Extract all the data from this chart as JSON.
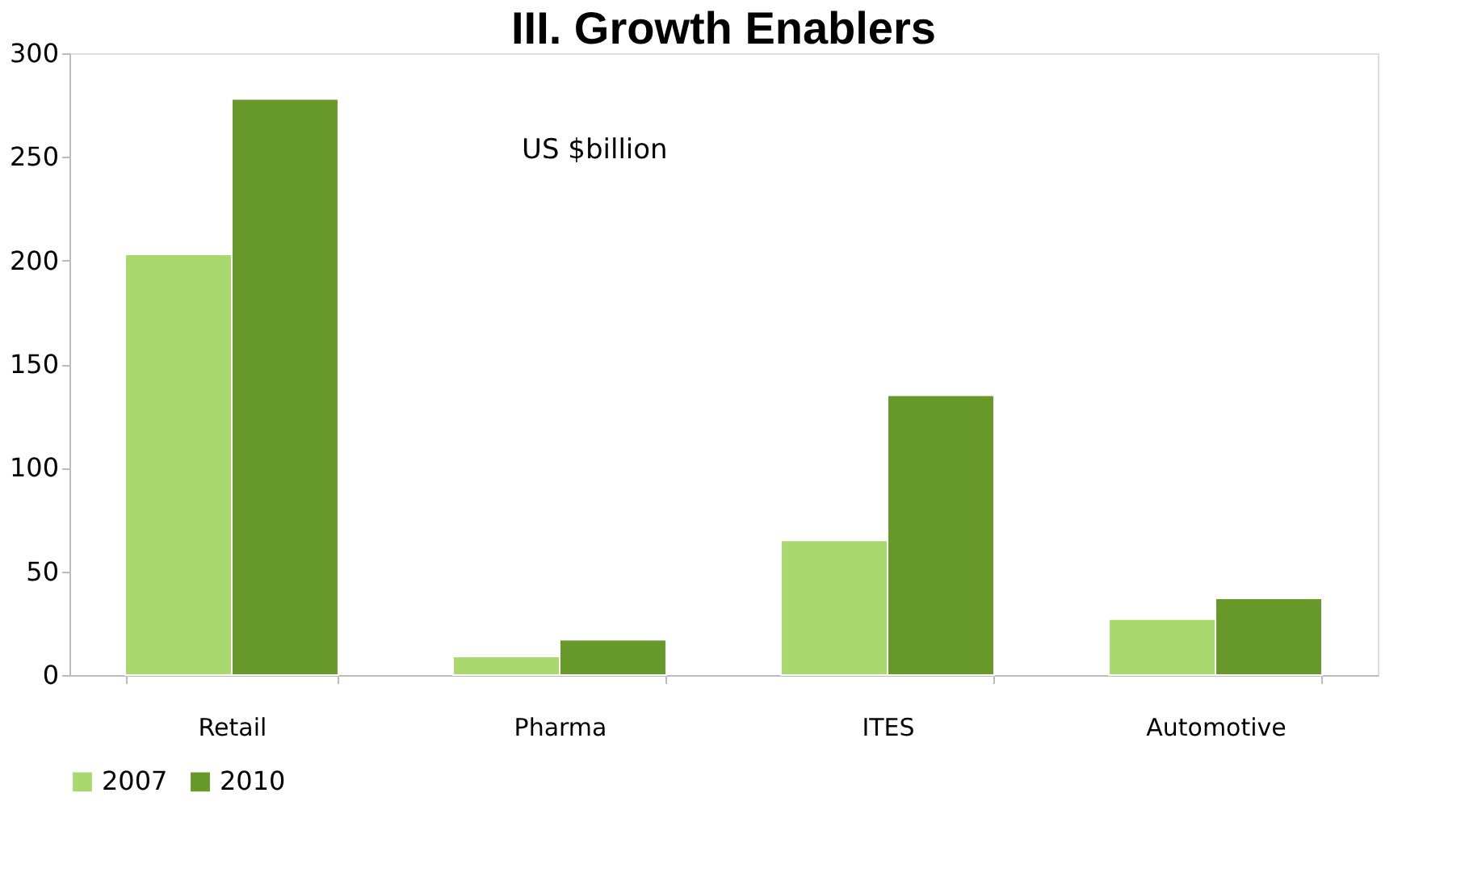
{
  "chart_data": {
    "type": "bar",
    "title": "III. Growth Enablers",
    "annotations": [
      "US $billion"
    ],
    "categories": [
      "Retail",
      "Pharma",
      "ITES",
      "Automotive"
    ],
    "series": [
      {
        "name": "2007",
        "color": "#a9d86e",
        "values": [
          203,
          9,
          65,
          27
        ]
      },
      {
        "name": "2010",
        "color": "#66992a",
        "values": [
          278,
          17,
          135,
          37
        ]
      }
    ],
    "ylim": [
      0,
      300
    ],
    "yticks": [
      0,
      50,
      100,
      150,
      200,
      250,
      300
    ],
    "grid": false,
    "legend": "bottom"
  }
}
